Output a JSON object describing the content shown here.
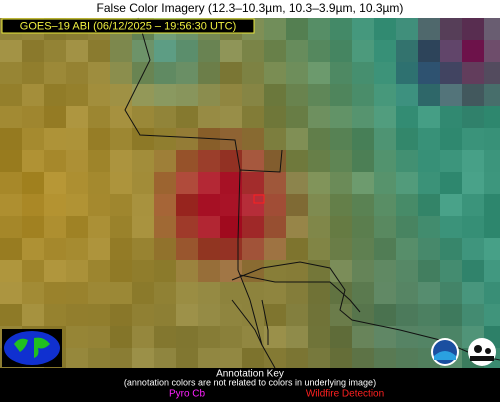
{
  "header": {
    "title": "False Color Imagery (12.3–10.3µm, 10.3–3.9µm, 10.3µm)",
    "timestamp": "GOES–19 ABI (06/12/2025 – 19:56:30 UTC)"
  },
  "key": {
    "title": "Annotation Key",
    "note": "(annotation colors are not related to colors in underlying image)",
    "items": [
      "Pyro Cb",
      "Wildfire Detection"
    ]
  }
}
